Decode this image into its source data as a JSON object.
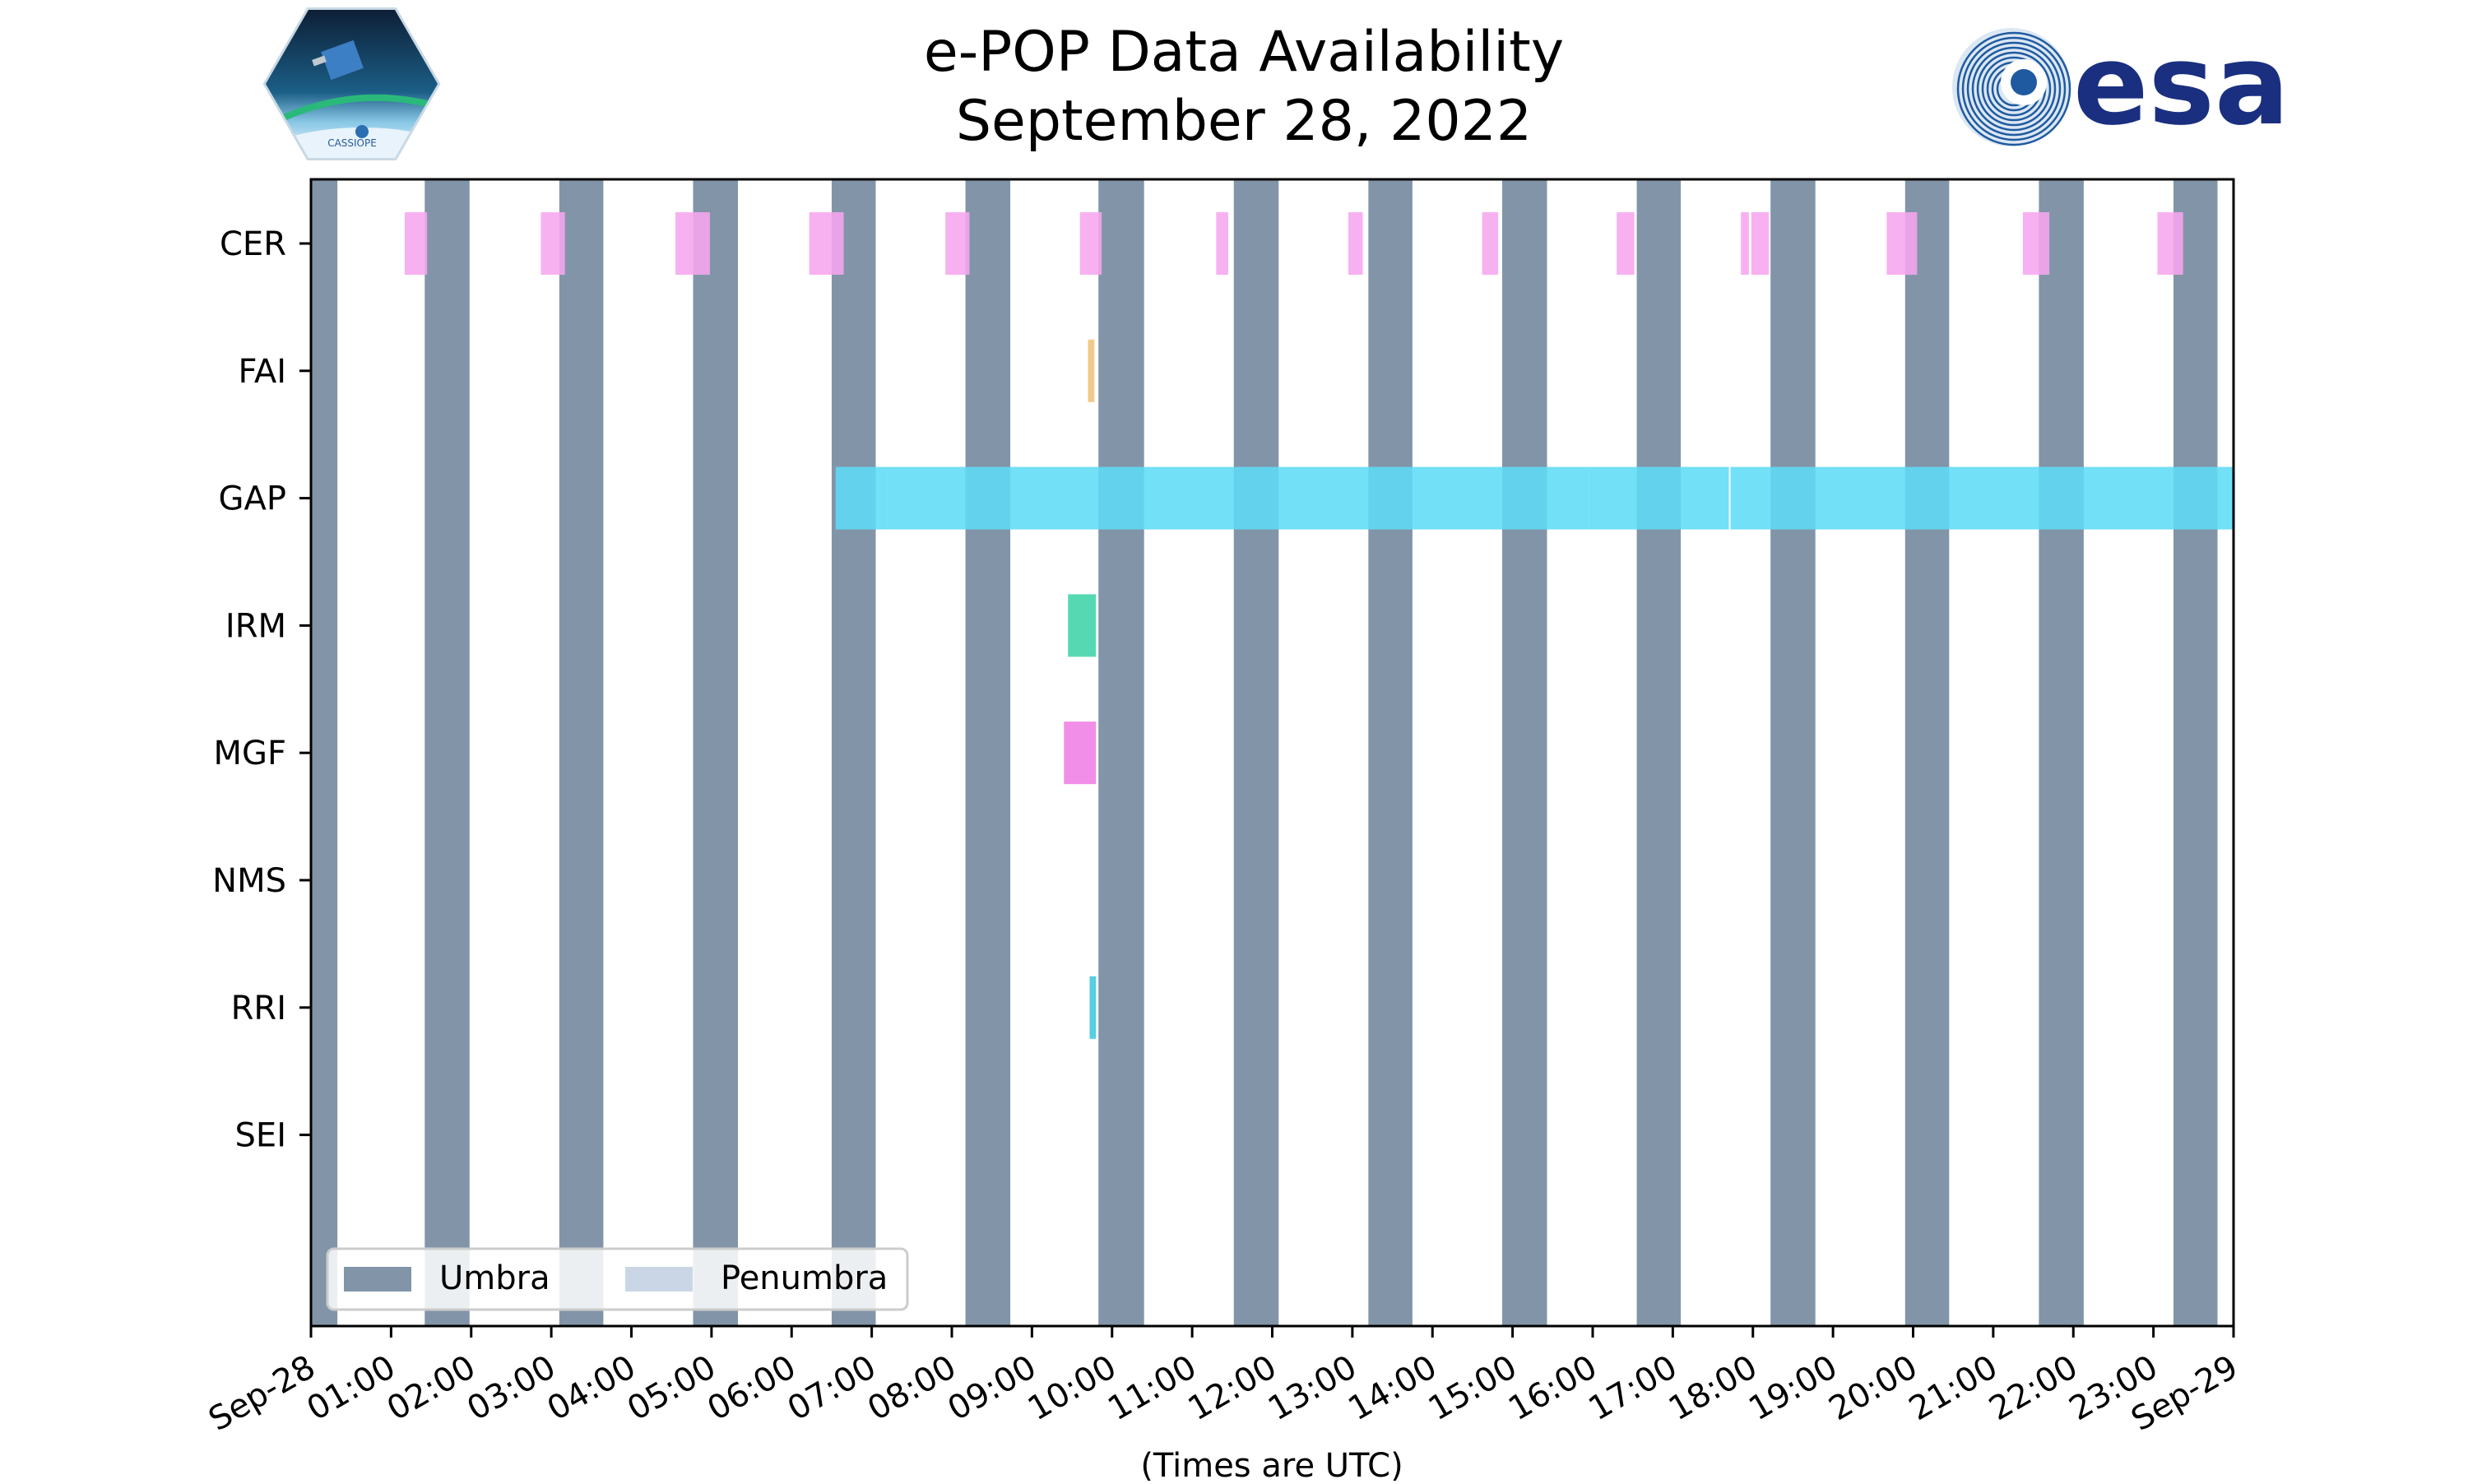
{
  "chart_data": {
    "type": "timeline",
    "title": [
      "e-POP Data Availability",
      "September 28, 2022"
    ],
    "xlabel": "(Times are UTC)",
    "xlim_hours": [
      0,
      24
    ],
    "x_tick_labels": [
      "Sep-28",
      "01:00",
      "02:00",
      "03:00",
      "04:00",
      "05:00",
      "06:00",
      "07:00",
      "08:00",
      "09:00",
      "10:00",
      "11:00",
      "12:00",
      "13:00",
      "14:00",
      "15:00",
      "16:00",
      "17:00",
      "18:00",
      "19:00",
      "20:00",
      "21:00",
      "22:00",
      "23:00",
      "Sep-29"
    ],
    "categories": [
      "CER",
      "FAI",
      "GAP",
      "IRM",
      "MGF",
      "NMS",
      "RRI",
      "SEI"
    ],
    "umbra_intervals_hours": [
      [
        0.0,
        0.33
      ],
      [
        1.42,
        1.98
      ],
      [
        3.1,
        3.65
      ],
      [
        4.77,
        5.33
      ],
      [
        6.5,
        7.05
      ],
      [
        8.17,
        8.73
      ],
      [
        9.83,
        10.4
      ],
      [
        11.52,
        12.08
      ],
      [
        13.2,
        13.75
      ],
      [
        14.87,
        15.43
      ],
      [
        16.55,
        17.1
      ],
      [
        18.22,
        18.78
      ],
      [
        19.9,
        20.45
      ],
      [
        21.57,
        22.13
      ],
      [
        23.25,
        23.8
      ]
    ],
    "series": [
      {
        "instrument": "CER",
        "color": "#f6a6ee",
        "intervals": [
          [
            1.17,
            1.45
          ],
          [
            2.87,
            3.17
          ],
          [
            4.55,
            4.98
          ],
          [
            6.22,
            6.65
          ],
          [
            7.92,
            8.22
          ],
          [
            9.6,
            9.87
          ],
          [
            11.3,
            11.45
          ],
          [
            12.95,
            13.13
          ],
          [
            14.62,
            14.82
          ],
          [
            16.3,
            16.52
          ],
          [
            17.85,
            17.95
          ],
          [
            17.98,
            18.2
          ],
          [
            19.67,
            20.05
          ],
          [
            21.37,
            21.7
          ],
          [
            23.05,
            23.37
          ]
        ]
      },
      {
        "instrument": "FAI",
        "color": "#f0c178",
        "intervals": [
          [
            9.7,
            9.78
          ]
        ]
      },
      {
        "instrument": "GAP",
        "color": "#5fdcf6",
        "intervals": [
          [
            6.55,
            6.85
          ],
          [
            6.85,
            7.2
          ],
          [
            7.2,
            7.45
          ],
          [
            7.45,
            15.95
          ],
          [
            15.95,
            17.7
          ],
          [
            17.72,
            24.0
          ]
        ]
      },
      {
        "instrument": "IRM",
        "color": "#3fd4a9",
        "intervals": [
          [
            9.45,
            9.8
          ]
        ]
      },
      {
        "instrument": "MGF",
        "color": "#ef7ee4",
        "intervals": [
          [
            9.4,
            9.8
          ]
        ]
      },
      {
        "instrument": "NMS",
        "color": "#cccccc",
        "intervals": []
      },
      {
        "instrument": "RRI",
        "color": "#3fc8dd",
        "intervals": [
          [
            9.72,
            9.8
          ]
        ]
      },
      {
        "instrument": "SEI",
        "color": "#cccccc",
        "intervals": []
      }
    ],
    "umbra_color": "#8295a8",
    "penumbra_color": "#cad6e6",
    "legend": {
      "position": "lower-left",
      "entries": [
        "Umbra",
        "Penumbra"
      ]
    }
  },
  "logos": {
    "left": "CASSIOPE",
    "right": "esa"
  }
}
